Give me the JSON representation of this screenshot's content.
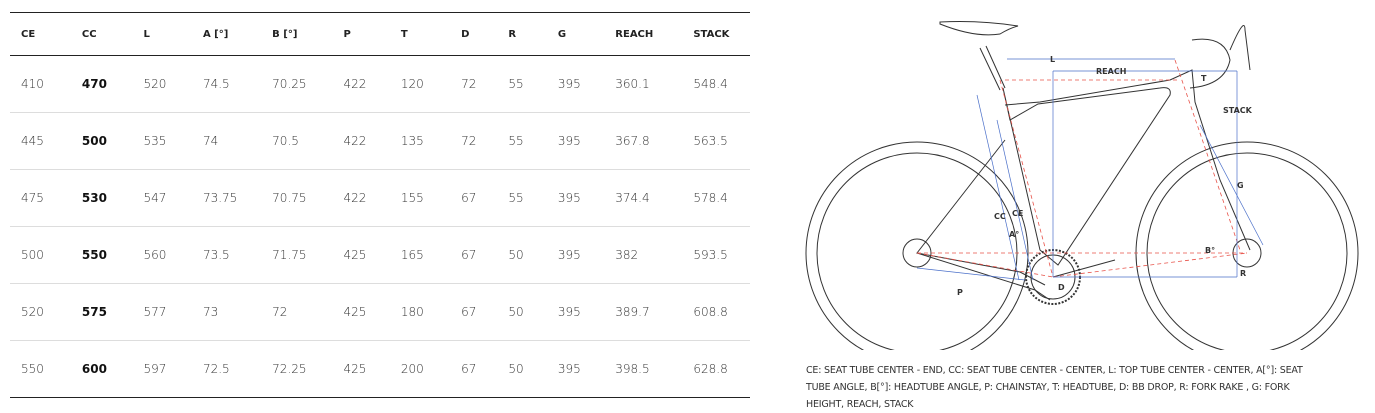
{
  "table": {
    "columns": [
      "CE",
      "CC",
      "L",
      "A [°]",
      "B [°]",
      "P",
      "T",
      "D",
      "R",
      "G",
      "REACH",
      "STACK"
    ],
    "rows": [
      [
        "410",
        "470",
        "520",
        "74.5",
        "70.25",
        "422",
        "120",
        "72",
        "55",
        "395",
        "360.1",
        "548.4"
      ],
      [
        "445",
        "500",
        "535",
        "74",
        "70.5",
        "422",
        "135",
        "72",
        "55",
        "395",
        "367.8",
        "563.5"
      ],
      [
        "475",
        "530",
        "547",
        "73.75",
        "70.75",
        "422",
        "155",
        "67",
        "55",
        "395",
        "374.4",
        "578.4"
      ],
      [
        "500",
        "550",
        "560",
        "73.5",
        "71.75",
        "425",
        "165",
        "67",
        "50",
        "395",
        "382",
        "593.5"
      ],
      [
        "520",
        "575",
        "577",
        "73",
        "72",
        "425",
        "180",
        "67",
        "50",
        "395",
        "389.7",
        "608.8"
      ],
      [
        "550",
        "600",
        "597",
        "72.5",
        "72.25",
        "425",
        "200",
        "67",
        "50",
        "395",
        "398.5",
        "628.8"
      ]
    ]
  },
  "diagram": {
    "labels": {
      "L": "L",
      "REACH": "REACH",
      "T": "T",
      "STACK": "STACK",
      "G": "G",
      "CC": "CC",
      "CE": "CE",
      "A": "A°",
      "B": "B°",
      "R": "R",
      "D": "D",
      "P": "P"
    },
    "colors": {
      "frame": "#333333",
      "dimension": "#4a6fc9",
      "centerline": "#e8534a"
    }
  },
  "caption": "CE: SEAT TUBE CENTER - END, CC: SEAT TUBE CENTER - CENTER, L: TOP TUBE CENTER - CENTER, A[°]: SEAT TUBE ANGLE, B[°]: HEADTUBE ANGLE, P: CHAINSTAY, T: HEADTUBE, D: BB DROP, R: FORK RAKE , G: FORK HEIGHT, REACH, STACK"
}
